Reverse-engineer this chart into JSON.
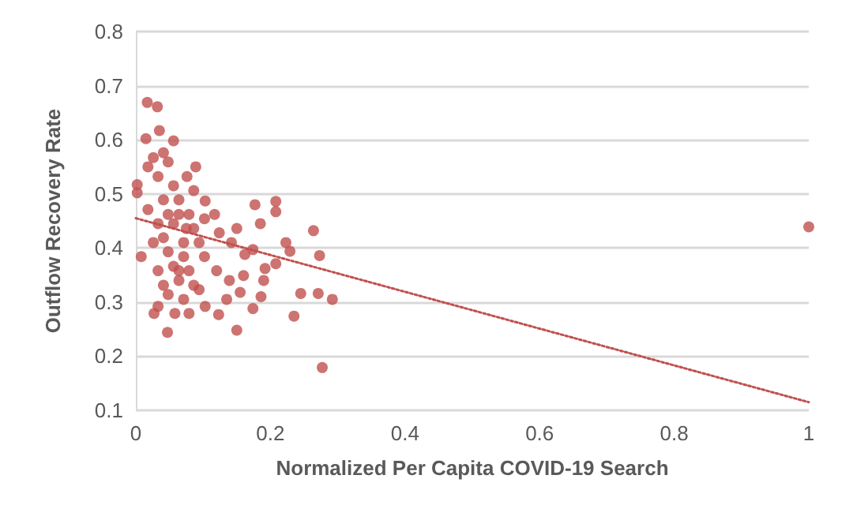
{
  "chart_data": {
    "type": "scatter",
    "xlabel": "Normalized Per Capita COVID-19 Search",
    "ylabel": "Outflow Recovery Rate",
    "xlim": [
      0,
      1
    ],
    "xticks": [
      0,
      0.2,
      0.4,
      0.6,
      0.8,
      1
    ],
    "ylim": [
      0.1,
      0.8
    ],
    "yticks": [
      0.1,
      0.2,
      0.3,
      0.4,
      0.5,
      0.6,
      0.7,
      0.8
    ],
    "grid": "y",
    "marker": "circle",
    "series": [
      {
        "color": "#c0504d",
        "x": [
          0.017,
          0.032,
          0.035,
          0.015,
          0.056,
          0.002,
          0.002,
          0.008,
          0.047,
          0.027,
          0.033,
          0.277,
          0.292,
          0.273,
          0.264,
          0.271,
          0.245,
          0.235,
          0.208,
          0.208,
          0.177,
          0.185,
          0.223,
          0.229,
          0.208,
          0.192,
          0.19,
          0.186,
          0.174,
          0.15,
          0.15,
          0.142,
          0.162,
          0.174,
          0.16,
          0.139,
          0.155,
          0.135,
          0.12,
          0.123,
          0.124,
          0.103,
          0.117,
          0.103,
          0.079,
          0.058,
          0.089,
          0.076,
          0.018,
          0.026,
          0.041,
          0.048,
          0.033,
          0.056,
          0.018,
          0.041,
          0.064,
          0.079,
          0.033,
          0.056,
          0.086,
          0.041,
          0.071,
          0.094,
          0.048,
          0.071,
          0.102,
          0.033,
          0.056,
          0.079,
          0.041,
          0.064,
          0.086,
          0.048,
          0.071,
          0.094,
          0.064,
          0.026,
          0.064,
          0.086,
          0.102,
          0.048,
          0.075,
          1
        ],
        "values": [
          0.669,
          0.661,
          0.617,
          0.602,
          0.598,
          0.517,
          0.502,
          0.384,
          0.244,
          0.279,
          0.292,
          0.179,
          0.305,
          0.386,
          0.432,
          0.316,
          0.316,
          0.274,
          0.486,
          0.467,
          0.48,
          0.445,
          0.41,
          0.394,
          0.371,
          0.362,
          0.34,
          0.31,
          0.288,
          0.248,
          0.436,
          0.41,
          0.388,
          0.397,
          0.349,
          0.34,
          0.318,
          0.305,
          0.358,
          0.277,
          0.428,
          0.487,
          0.462,
          0.292,
          0.279,
          0.279,
          0.55,
          0.532,
          0.55,
          0.567,
          0.576,
          0.559,
          0.532,
          0.515,
          0.471,
          0.489,
          0.489,
          0.462,
          0.445,
          0.445,
          0.436,
          0.419,
          0.41,
          0.41,
          0.393,
          0.384,
          0.384,
          0.358,
          0.366,
          0.358,
          0.331,
          0.34,
          0.331,
          0.314,
          0.305,
          0.323,
          0.358,
          0.41,
          0.462,
          0.506,
          0.454,
          0.462,
          0.436,
          0.439
        ]
      },
      {
        "type": "line",
        "color": "#c0504d",
        "line_style": "dotted",
        "marker": "none",
        "x": [
          0,
          1
        ],
        "values": [
          0.455,
          0.115
        ]
      }
    ]
  }
}
